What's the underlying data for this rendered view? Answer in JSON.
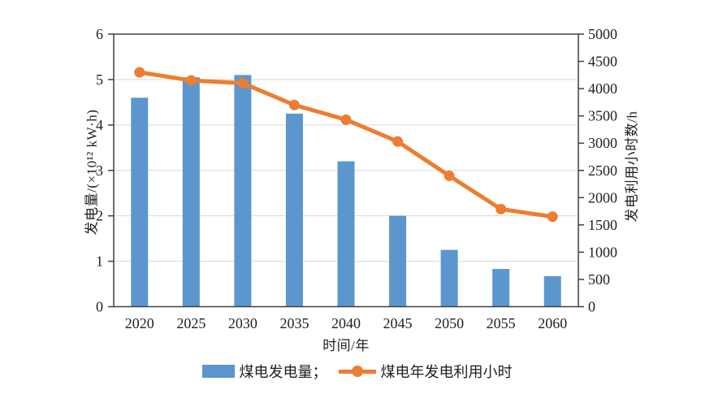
{
  "chart_data": {
    "type": "combo-bar-line",
    "categories": [
      "2020",
      "2025",
      "2030",
      "2035",
      "2040",
      "2045",
      "2050",
      "2055",
      "2060"
    ],
    "series": [
      {
        "name": "煤电发电量",
        "type": "bar",
        "axis": "left",
        "color": "#5B96CE",
        "values": [
          4.6,
          5.05,
          5.1,
          4.25,
          3.2,
          2.0,
          1.25,
          0.83,
          0.67
        ]
      },
      {
        "name": "煤电年发电利用小时",
        "type": "line",
        "axis": "right",
        "color": "#ED7D31",
        "values": [
          4300,
          4150,
          4100,
          3700,
          3430,
          3030,
          2400,
          1790,
          1650
        ]
      }
    ],
    "xlabel": "时间/年",
    "ylabel_left": "发电量/(×10¹² kW·h)",
    "ylabel_right": "发电利用小时数/h",
    "ylim_left": [
      0,
      6
    ],
    "ytick_step_left": 1,
    "ylim_right": [
      0,
      5000
    ],
    "ytick_step_right": 500,
    "grid": "horizontal-left-axis",
    "legend_position": "bottom-center",
    "colors": {
      "grid": "#d9d9d9",
      "axis": "#404040",
      "text": "#1f1f1f",
      "background": "#ffffff"
    }
  },
  "legend": {
    "items": [
      {
        "label": "煤电发电量；",
        "swatch": "bar-swatch"
      },
      {
        "label": "煤电年发电利用小时",
        "swatch": "line-swatch"
      }
    ]
  }
}
